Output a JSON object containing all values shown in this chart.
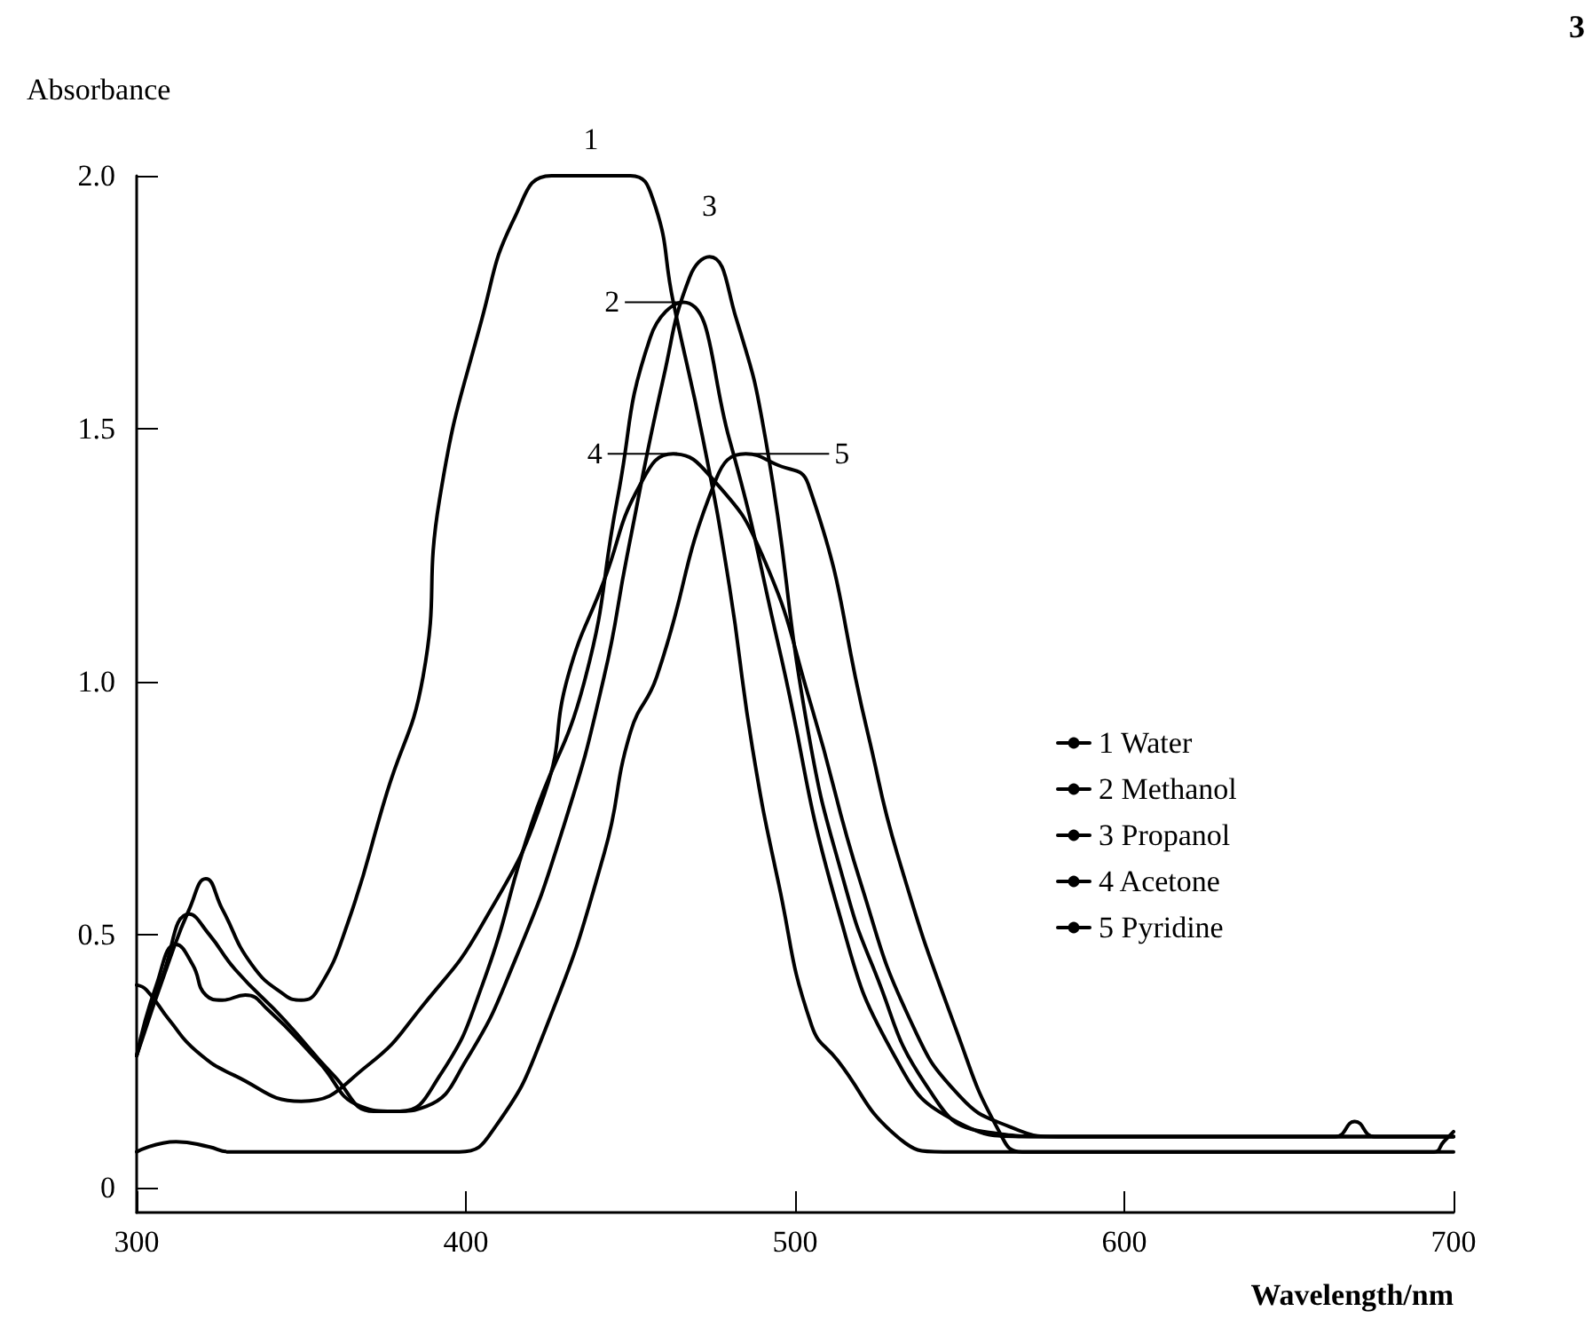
{
  "chart_data": {
    "type": "line",
    "xlabel": "Wavelength/nm",
    "ylabel": "Absorbance",
    "xlim": [
      300,
      700
    ],
    "xticks": [
      300,
      400,
      500,
      600,
      700
    ],
    "ylim": [
      -0.05,
      2.0
    ],
    "yticks": [
      "0",
      {
        "value": 0.5,
        "label": "0.5"
      },
      {
        "value": 1,
        "label": "1.0"
      },
      {
        "value": 1.5,
        "label": "1.5"
      },
      {
        "value": 2,
        "label": "2.0"
      }
    ],
    "grid": false,
    "legend": "right",
    "marker": "none",
    "line_style": "solid",
    "series": [
      {
        "name": "1 Water",
        "color": "#000000",
        "x": [
          300,
          310,
          316,
          321,
          326,
          335,
          345,
          350,
          355,
          364,
          376,
          387,
          392,
          405,
          415,
          426,
          450,
          457,
          463,
          472,
          480,
          487,
          495,
          505,
          513,
          531,
          545,
          694,
          697,
          700
        ],
        "values": [
          0.26,
          0.45,
          0.55,
          0.61,
          0.55,
          0.44,
          0.38,
          0.37,
          0.39,
          0.52,
          0.78,
          1.01,
          1.36,
          1.72,
          1.92,
          2.0,
          2.0,
          1.95,
          1.75,
          1.48,
          1.19,
          0.87,
          0.6,
          0.32,
          0.25,
          0.1,
          0.07,
          0.07,
          0.09,
          0.11
        ]
      },
      {
        "name": "2 Methanol",
        "color": "#000000",
        "x": [
          300,
          308,
          316,
          322,
          330,
          345,
          360,
          372,
          380,
          392,
          405,
          420,
          436,
          446,
          456,
          466,
          480,
          495,
          513,
          531,
          549,
          570,
          664,
          670,
          676,
          700
        ],
        "values": [
          0.26,
          0.42,
          0.54,
          0.5,
          0.43,
          0.33,
          0.22,
          0.15,
          0.15,
          0.22,
          0.4,
          0.72,
          1.0,
          1.36,
          1.68,
          1.75,
          1.48,
          1.07,
          0.55,
          0.25,
          0.13,
          0.1,
          0.1,
          0.13,
          0.1,
          0.1
        ]
      },
      {
        "name": "3 Propanol",
        "color": "#000000",
        "x": [
          300,
          306,
          312,
          317,
          321,
          326,
          333,
          340,
          355,
          368,
          378,
          388,
          400,
          415,
          430,
          442,
          449,
          460,
          468,
          474,
          482,
          491,
          504,
          515,
          524,
          540,
          557,
          580,
          700
        ],
        "values": [
          0.26,
          0.4,
          0.48,
          0.44,
          0.38,
          0.37,
          0.38,
          0.35,
          0.25,
          0.16,
          0.15,
          0.16,
          0.25,
          0.45,
          0.72,
          1.01,
          1.25,
          1.6,
          1.8,
          1.84,
          1.72,
          1.48,
          0.9,
          0.6,
          0.43,
          0.2,
          0.11,
          0.1,
          0.1
        ]
      },
      {
        "name": "4 Acetone",
        "color": "#000000",
        "x": [
          300,
          303,
          310,
          318,
          330,
          350,
          370,
          387,
          405,
          424,
          431,
          442,
          453,
          463,
          475,
          490,
          505,
          520,
          535,
          550,
          565,
          580,
          700
        ],
        "values": [
          0.4,
          0.39,
          0.33,
          0.27,
          0.22,
          0.17,
          0.24,
          0.36,
          0.52,
          0.78,
          1.01,
          1.2,
          1.39,
          1.45,
          1.4,
          1.25,
          0.95,
          0.6,
          0.33,
          0.18,
          0.12,
          0.1,
          0.1
        ]
      },
      {
        "name": "5 Pyridine",
        "color": "#000000",
        "x": [
          300,
          312,
          322,
          328,
          398,
          409,
          424,
          442,
          450,
          458,
          476,
          485,
          494,
          504,
          522,
          531,
          549,
          562,
          569,
          700
        ],
        "values": [
          0.07,
          0.09,
          0.08,
          0.07,
          0.07,
          0.12,
          0.31,
          0.66,
          0.9,
          1.01,
          1.4,
          1.45,
          1.43,
          1.39,
          0.9,
          0.66,
          0.31,
          0.11,
          0.07,
          0.07
        ]
      }
    ],
    "annotations": [
      {
        "text": "1",
        "x": 438,
        "y": 2.0
      },
      {
        "text": "2",
        "x": 465,
        "y": 1.75
      },
      {
        "text": "3",
        "x": 474,
        "y": 1.84
      },
      {
        "text": "4",
        "x": 463,
        "y": 1.45
      },
      {
        "text": "5",
        "x": 485,
        "y": 1.45
      },
      "3"
    ]
  }
}
